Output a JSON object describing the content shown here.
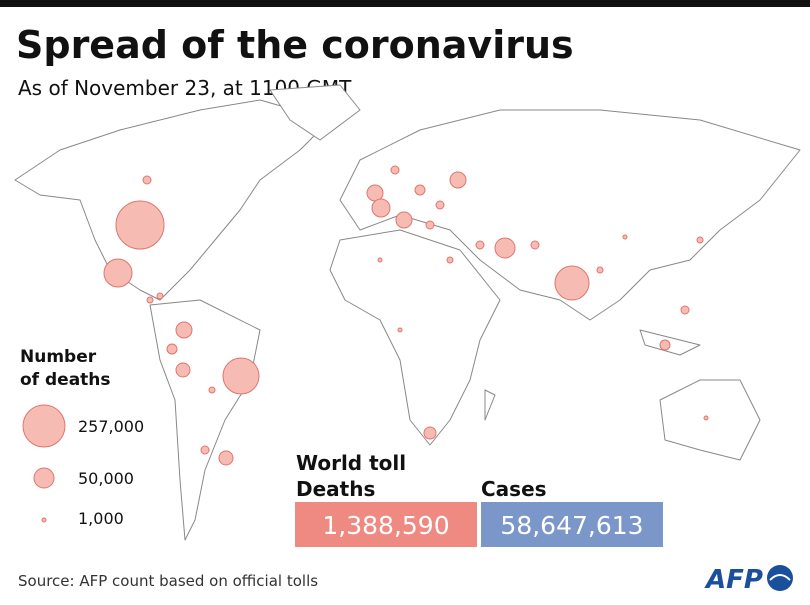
{
  "header": {
    "title": "Spread of the coronavirus",
    "subtitle": "As of November 23, at 1100 GMT"
  },
  "legend": {
    "title_lines": [
      "Number",
      "of deaths"
    ],
    "items": [
      "257,000",
      "50,000",
      "1,000"
    ]
  },
  "world_toll": {
    "title": "World toll",
    "deaths_label": "Deaths",
    "deaths": "1,388,590",
    "cases_label": "Cases",
    "cases": "58,647,613"
  },
  "footer": {
    "source": "Source: AFP count based on official tolls",
    "logo": "AFP"
  }
}
